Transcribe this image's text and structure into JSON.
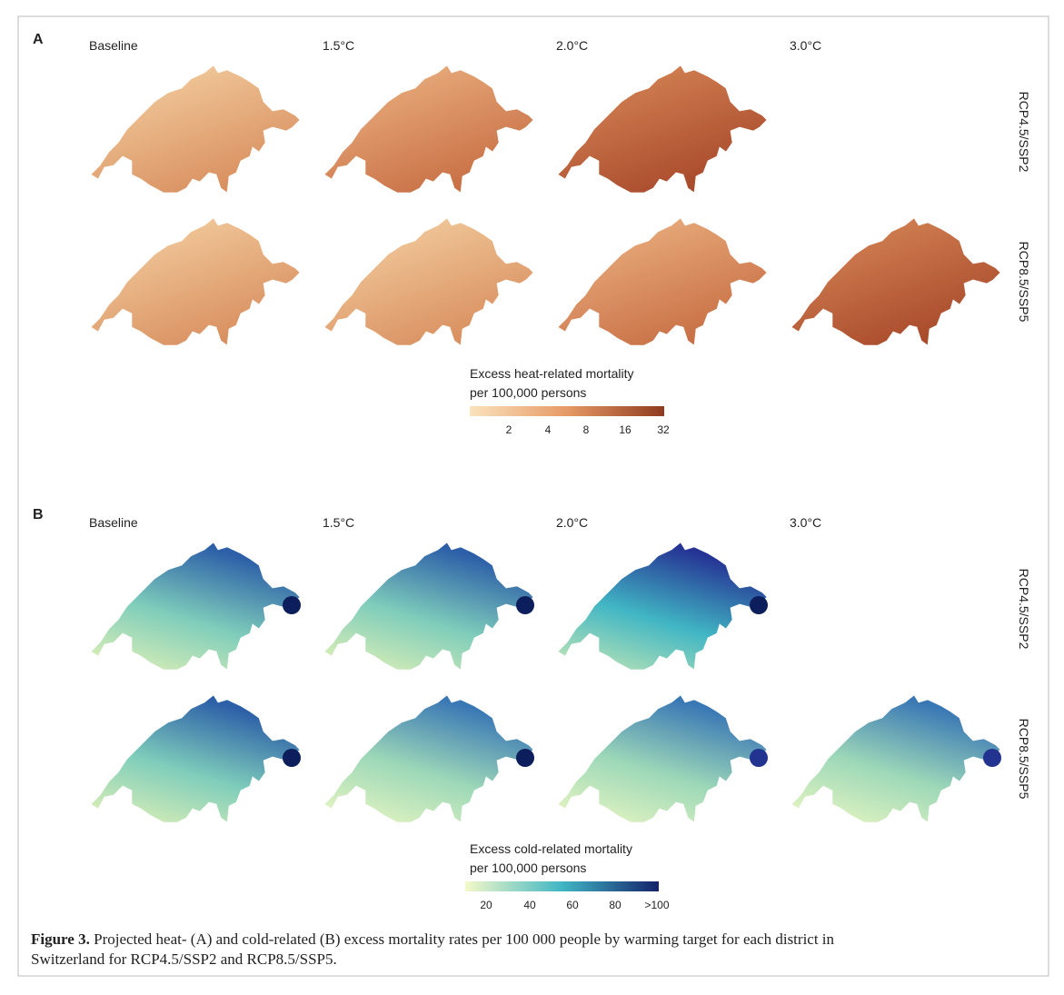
{
  "panels": [
    {
      "label": "A",
      "columns": [
        "Baseline",
        "1.5°C",
        "2.0°C",
        "3.0°C"
      ],
      "rows": [
        "RCP4.5/SSP2",
        "RCP8.5/SSP5"
      ],
      "legend": {
        "title": [
          "Excess heat-related mortality",
          "per 100,000 persons"
        ],
        "ticks": [
          "2",
          "4",
          "8",
          "16",
          "32"
        ]
      }
    },
    {
      "label": "B",
      "columns": [
        "Baseline",
        "1.5°C",
        "2.0°C",
        "3.0°C"
      ],
      "rows": [
        "RCP4.5/SSP2",
        "RCP8.5/SSP5"
      ],
      "legend": {
        "title": [
          "Excess cold-related mortality",
          "per 100,000 persons"
        ],
        "ticks": [
          "20",
          "40",
          "60",
          "80",
          ">100"
        ]
      }
    }
  ],
  "caption": {
    "label": "Figure 3.",
    "lines": [
      " Projected heat- (A) and cold-related (B) excess mortality rates per 100 000 people by warming target for each district in",
      "Switzerland for RCP4.5/SSP2 and RCP8.5/SSP5."
    ]
  }
}
